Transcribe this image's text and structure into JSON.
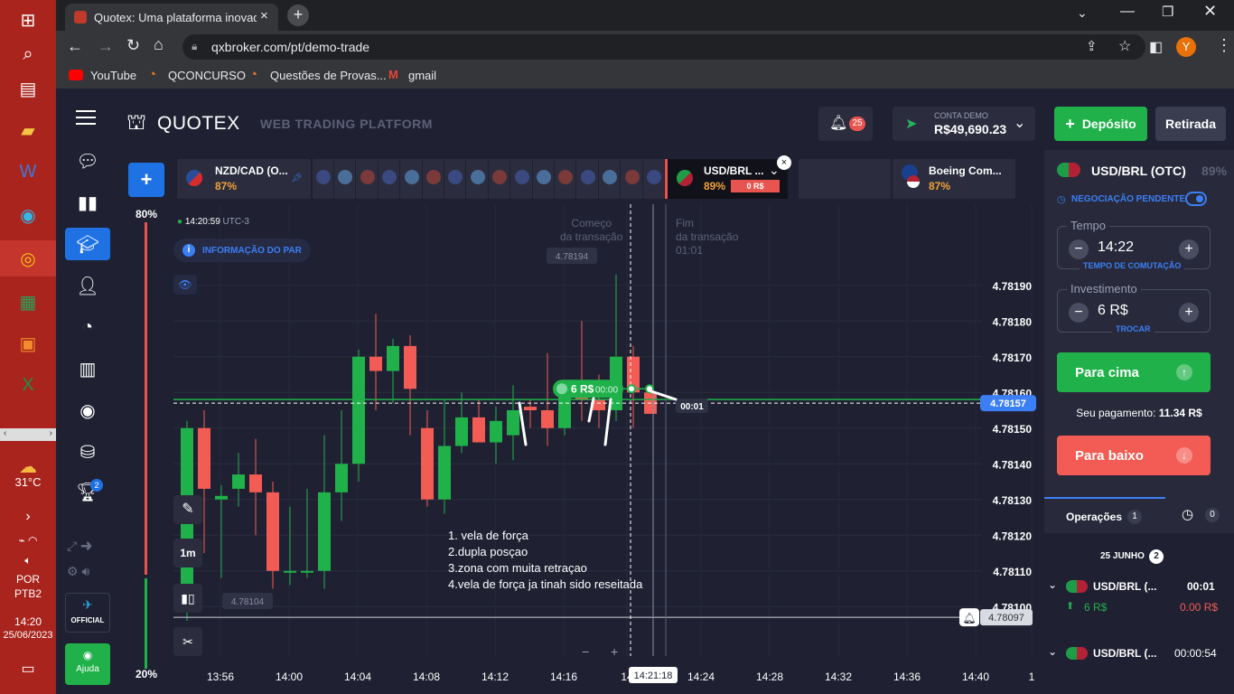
{
  "taskbar": {
    "weather": "31°C",
    "language": "POR",
    "layout": "PTB2",
    "time": "14:20",
    "date": "25/06/2023"
  },
  "browser": {
    "tab_title": "Quotex: Uma plataforma inovado",
    "url": "qxbroker.com/pt/demo-trade",
    "profile_initial": "Y",
    "bookmarks": [
      "YouTube",
      "QCONCURSO",
      "Questões de Provas...",
      "gmail"
    ]
  },
  "header": {
    "brand": "QUOTEX",
    "subtitle": "WEB TRADING PLATFORM",
    "notifications": "25",
    "account_label": "CONTA DEMO",
    "balance": "R$49,690.23",
    "deposit": "Depósito",
    "withdraw": "Retirada"
  },
  "assets": {
    "first": {
      "name": "NZD/CAD (O...",
      "payout": "87%"
    },
    "active": {
      "name": "USD/BRL ...",
      "payout": "89%",
      "amount": "0 R$"
    },
    "last": {
      "name": "Boeing Com...",
      "payout": "87%"
    }
  },
  "leftnav": {
    "percent_top": "80%",
    "percent_bottom": "20%",
    "timeframe": "1m",
    "official": "OFFICIAL",
    "help": "Ajuda",
    "trophy_badge": "2"
  },
  "chart": {
    "server_time": "14:20:59",
    "timezone": "UTC-3",
    "pair_info": "INFORMAÇÃO DO PAR",
    "start_label": "Começo\nda transação",
    "end_label": "Fim\nda transação",
    "end_timer": "01:01",
    "high_marker": "4.78194",
    "low_marker": "4.78104",
    "current_price": "4.78157",
    "alert_price": "4.78097",
    "trade_amount": "6 R$",
    "trade_timer": "00:00",
    "countdown": "00:01",
    "cursor_time": "14:21:18",
    "y_labels": [
      "4.78190",
      "4.78180",
      "4.78170",
      "4.78160",
      "4.78150",
      "4.78140",
      "4.78130",
      "4.78120",
      "4.78110",
      "4.78100"
    ],
    "x_labels": [
      "13:56",
      "14:00",
      "14:04",
      "14:08",
      "14:12",
      "14:16",
      "14",
      "14:24",
      "14:28",
      "14:32",
      "14:36",
      "14:40",
      "1"
    ],
    "notes": [
      "1. vela de força",
      "2.dupla posçao",
      "3.zona com muita retraçao",
      "4.vela de força ja tinah sido reseitada"
    ],
    "zoom_minus": "−",
    "zoom_plus": "+"
  },
  "chart_data": {
    "type": "candlestick",
    "ylim": [
      4.78095,
      4.78195
    ],
    "candles": [
      {
        "o": 4.78102,
        "h": 4.78152,
        "l": 4.78096,
        "c": 4.7815
      },
      {
        "o": 4.7815,
        "h": 4.78155,
        "l": 4.78115,
        "c": 4.78133
      },
      {
        "o": 4.7813,
        "h": 4.78134,
        "l": 4.78108,
        "c": 4.78131
      },
      {
        "o": 4.78133,
        "h": 4.78143,
        "l": 4.78128,
        "c": 4.78137
      },
      {
        "o": 4.78137,
        "h": 4.78147,
        "l": 4.7812,
        "c": 4.78132
      },
      {
        "o": 4.78132,
        "h": 4.78135,
        "l": 4.78105,
        "c": 4.7811
      },
      {
        "o": 4.7811,
        "h": 4.78128,
        "l": 4.78106,
        "c": 4.7811
      },
      {
        "o": 4.7811,
        "h": 4.78133,
        "l": 4.78108,
        "c": 4.7811
      },
      {
        "o": 4.7811,
        "h": 4.78148,
        "l": 4.78105,
        "c": 4.78132
      },
      {
        "o": 4.78132,
        "h": 4.78155,
        "l": 4.78124,
        "c": 4.7814
      },
      {
        "o": 4.7814,
        "h": 4.78172,
        "l": 4.78135,
        "c": 4.7817
      },
      {
        "o": 4.7817,
        "h": 4.78182,
        "l": 4.78155,
        "c": 4.78166
      },
      {
        "o": 4.78166,
        "h": 4.78175,
        "l": 4.78157,
        "c": 4.78173
      },
      {
        "o": 4.78173,
        "h": 4.78176,
        "l": 4.78148,
        "c": 4.78161
      },
      {
        "o": 4.7815,
        "h": 4.78155,
        "l": 4.78128,
        "c": 4.7813
      },
      {
        "o": 4.7813,
        "h": 4.78158,
        "l": 4.78126,
        "c": 4.78145
      },
      {
        "o": 4.78145,
        "h": 4.7816,
        "l": 4.78143,
        "c": 4.78153
      },
      {
        "o": 4.78153,
        "h": 4.78158,
        "l": 4.78146,
        "c": 4.78146
      },
      {
        "o": 4.78146,
        "h": 4.78156,
        "l": 4.7814,
        "c": 4.78152
      },
      {
        "o": 4.78148,
        "h": 4.78162,
        "l": 4.78141,
        "c": 4.78155
      },
      {
        "o": 4.78156,
        "h": 4.78158,
        "l": 4.7815,
        "c": 4.78155
      },
      {
        "o": 4.78155,
        "h": 4.78171,
        "l": 4.78145,
        "c": 4.7815
      },
      {
        "o": 4.7815,
        "h": 4.7816,
        "l": 4.78148,
        "c": 4.78161
      },
      {
        "o": 4.78162,
        "h": 4.7818,
        "l": 4.78152,
        "c": 4.78158
      },
      {
        "o": 4.78158,
        "h": 4.78165,
        "l": 4.7815,
        "c": 4.78155
      },
      {
        "o": 4.78155,
        "h": 4.78193,
        "l": 4.78152,
        "c": 4.7817
      },
      {
        "o": 4.7817,
        "h": 4.78173,
        "l": 4.7815,
        "c": 4.7816
      },
      {
        "o": 4.7816,
        "h": 4.78162,
        "l": 4.78154,
        "c": 4.78154
      }
    ]
  },
  "panel": {
    "asset": "USD/BRL (OTC)",
    "asset_payout": "89%",
    "pending": "NEGOCIAÇÃO PENDENTE",
    "time_label": "Tempo",
    "time_value": "14:22",
    "time_switch": "TEMPO DE COMUTAÇÃO",
    "invest_label": "Investimento",
    "invest_value": "6 R$",
    "invest_switch": "TROCAR",
    "up": "Para cima",
    "payout_label": "Seu pagamento:",
    "payout_value": "11.34 R$",
    "down": "Para baixo",
    "ops_tab": "Operações",
    "ops_count": "1",
    "hist_count": "0",
    "date": "25 JUNHO",
    "date_count": "2",
    "trades": [
      {
        "asset": "USD/BRL (...",
        "time": "00:01",
        "amount": "6 R$",
        "profit": "0.00 R$"
      },
      {
        "asset": "USD/BRL (...",
        "time": "00:00:54"
      }
    ]
  }
}
